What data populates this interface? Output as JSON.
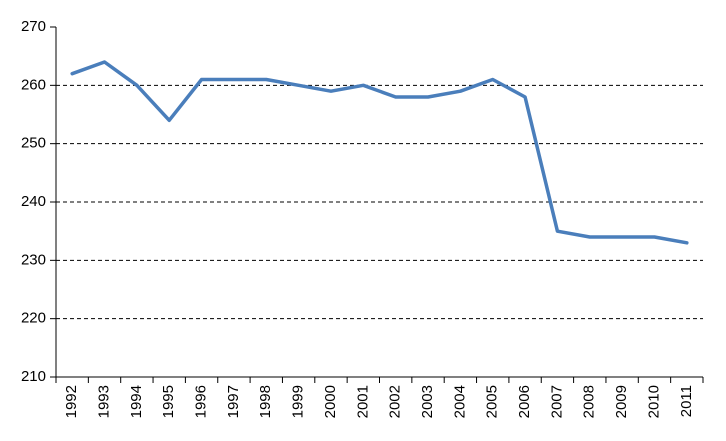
{
  "chart_data": {
    "type": "line",
    "categories": [
      "1992",
      "1993",
      "1994",
      "1995",
      "1996",
      "1997",
      "1998",
      "1999",
      "2000",
      "2001",
      "2002",
      "2003",
      "2004",
      "2005",
      "2006",
      "2007",
      "2008",
      "2009",
      "2010",
      "2011"
    ],
    "series": [
      {
        "color": "#4a7ebb",
        "values": [
          262,
          264,
          260,
          254,
          261,
          261,
          261,
          260,
          259,
          260,
          258,
          258,
          259,
          261,
          258,
          235,
          234,
          234,
          234,
          233
        ]
      }
    ],
    "ylim": [
      210,
      270
    ],
    "yticks": [
      210,
      220,
      230,
      240,
      250,
      260,
      270
    ],
    "grid": true
  }
}
